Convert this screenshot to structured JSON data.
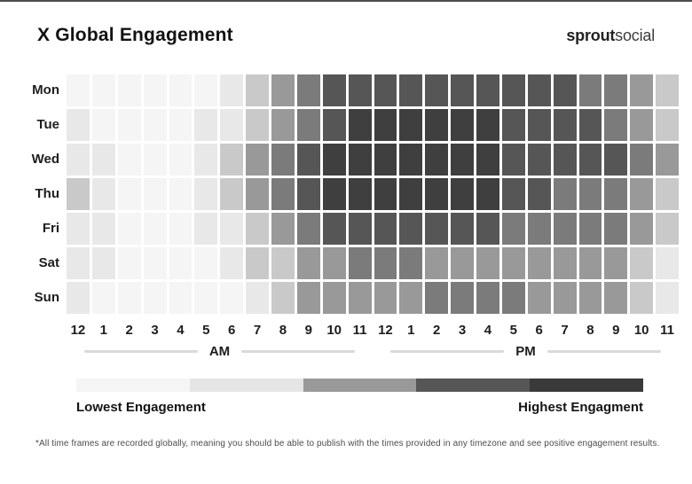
{
  "header": {
    "title": "X Global Engagement",
    "brand_bold": "sprout",
    "brand_light": "social"
  },
  "chart_data": {
    "type": "heatmap",
    "title": "X Global Engagement",
    "days": [
      "Mon",
      "Tue",
      "Wed",
      "Thu",
      "Fri",
      "Sat",
      "Sun"
    ],
    "hours": [
      "12",
      "1",
      "2",
      "3",
      "4",
      "5",
      "6",
      "7",
      "8",
      "9",
      "10",
      "11",
      "12",
      "1",
      "2",
      "3",
      "4",
      "5",
      "6",
      "7",
      "8",
      "9",
      "10",
      "11"
    ],
    "period_labels": {
      "am": "AM",
      "pm": "PM"
    },
    "value_scale": "engagement level 0 (lowest) to 6 (highest)",
    "level_colors": [
      "#f5f5f5",
      "#e8e8e8",
      "#c9c9c9",
      "#999999",
      "#7b7b7b",
      "#565656",
      "#3f3f3f"
    ],
    "series": [
      {
        "name": "Mon",
        "values": [
          0,
          0,
          0,
          0,
          0,
          0,
          1,
          2,
          3,
          4,
          5,
          5,
          5,
          5,
          5,
          5,
          5,
          5,
          5,
          5,
          4,
          4,
          3,
          2
        ]
      },
      {
        "name": "Tue",
        "values": [
          1,
          0,
          0,
          0,
          0,
          1,
          1,
          2,
          3,
          4,
          5,
          6,
          6,
          6,
          6,
          6,
          6,
          5,
          5,
          5,
          5,
          4,
          3,
          2
        ]
      },
      {
        "name": "Wed",
        "values": [
          1,
          1,
          0,
          0,
          0,
          1,
          2,
          3,
          4,
          5,
          6,
          6,
          6,
          6,
          6,
          6,
          6,
          5,
          5,
          5,
          5,
          5,
          4,
          3
        ]
      },
      {
        "name": "Thu",
        "values": [
          2,
          1,
          0,
          0,
          0,
          1,
          2,
          3,
          4,
          5,
          6,
          6,
          6,
          6,
          6,
          6,
          6,
          5,
          5,
          4,
          4,
          4,
          3,
          2
        ]
      },
      {
        "name": "Fri",
        "values": [
          1,
          1,
          0,
          0,
          0,
          1,
          1,
          2,
          3,
          4,
          5,
          5,
          5,
          5,
          5,
          5,
          5,
          4,
          4,
          4,
          4,
          4,
          3,
          2
        ]
      },
      {
        "name": "Sat",
        "values": [
          1,
          1,
          0,
          0,
          0,
          0,
          1,
          2,
          2,
          3,
          3,
          4,
          4,
          4,
          3,
          3,
          3,
          3,
          3,
          3,
          3,
          3,
          2,
          1
        ]
      },
      {
        "name": "Sun",
        "values": [
          1,
          0,
          0,
          0,
          0,
          0,
          0,
          1,
          2,
          3,
          3,
          3,
          3,
          3,
          4,
          4,
          4,
          4,
          3,
          3,
          3,
          3,
          2,
          1
        ]
      }
    ],
    "legend": {
      "colors": [
        "#f5f5f5",
        "#e5e5e5",
        "#999999",
        "#565656",
        "#3a3a3a"
      ],
      "low_label": "Lowest Engagement",
      "high_label": "Highest Engagment"
    }
  },
  "footnote": "*All time frames are recorded globally, meaning you should be able to publish with the times provided in any timezone and see positive engagement results."
}
